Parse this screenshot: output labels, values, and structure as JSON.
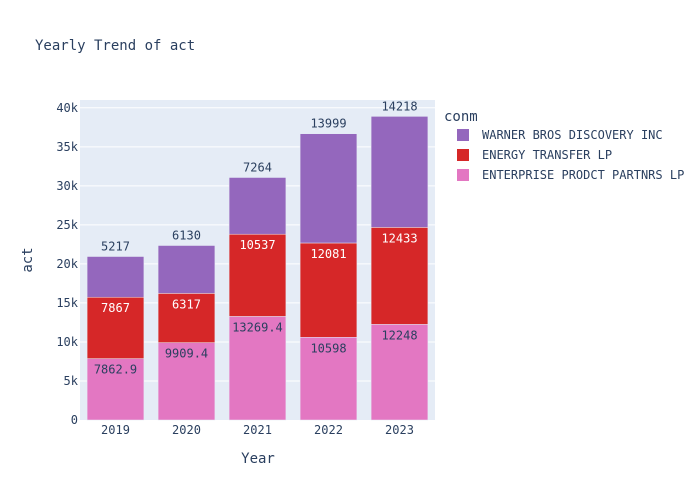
{
  "chart_data": {
    "type": "bar",
    "barmode": "stack",
    "title": "Yearly Trend of act",
    "xlabel": "Year",
    "ylabel": "act",
    "categories": [
      "2019",
      "2020",
      "2021",
      "2022",
      "2023"
    ],
    "ylim": [
      0,
      41000
    ],
    "yticks": [
      0,
      5000,
      10000,
      15000,
      20000,
      25000,
      30000,
      35000,
      40000
    ],
    "ytick_labels": [
      "0",
      "5k",
      "10k",
      "15k",
      "20k",
      "25k",
      "30k",
      "35k",
      "40k"
    ],
    "grid": true,
    "legend": {
      "title": "conm",
      "position": "right"
    },
    "series": [
      {
        "name": "ENTERPRISE PRODCT PARTNRS LP",
        "color": "#e377c2",
        "values": [
          7862.9,
          9909.4,
          13269.4,
          10598,
          12248
        ],
        "labels": [
          "7862.9",
          "9909.4",
          "13269.4",
          "10598",
          "12248"
        ],
        "label_color": "#2a3f5f"
      },
      {
        "name": "ENERGY TRANSFER LP",
        "color": "#d62728",
        "values": [
          7867,
          6317,
          10537,
          12081,
          12433
        ],
        "labels": [
          "7867",
          "6317",
          "10537",
          "12081",
          "12433"
        ],
        "label_color": "#ffffff"
      },
      {
        "name": "WARNER BROS DISCOVERY INC",
        "color": "#9467bd",
        "values": [
          5217,
          6130,
          7264,
          13999,
          14218
        ],
        "labels": [
          "5217",
          "6130",
          "7264",
          "13999",
          "14218"
        ],
        "label_color": "#2a3f5f"
      }
    ]
  }
}
